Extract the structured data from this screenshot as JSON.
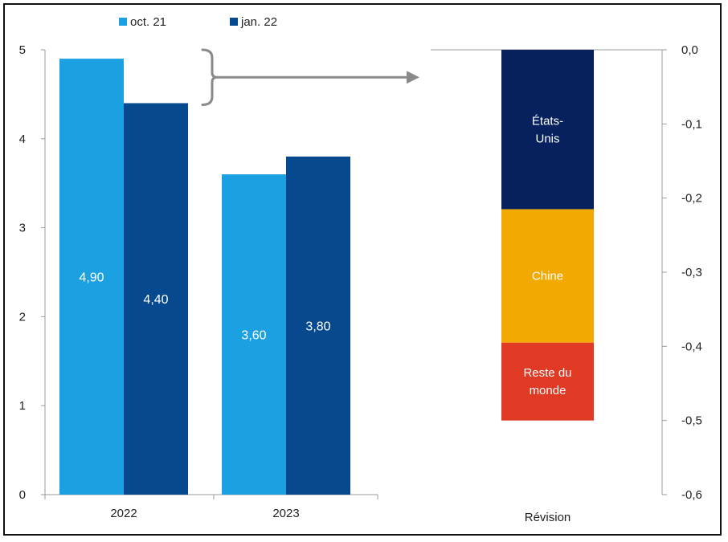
{
  "chart_data": [
    {
      "type": "bar",
      "categories": [
        "2022",
        "2023"
      ],
      "series": [
        {
          "name": "oct. 21",
          "values": [
            4.9,
            3.6
          ],
          "color": "#1ba0e2"
        },
        {
          "name": "jan. 22",
          "values": [
            4.4,
            3.8
          ],
          "color": "#06498f"
        }
      ],
      "data_labels": [
        [
          "4,90",
          "3,60"
        ],
        [
          "4,40",
          "3,80"
        ]
      ],
      "ylim": [
        0,
        5
      ],
      "yticks": [
        0,
        1,
        2,
        3,
        4,
        5
      ],
      "ytick_labels": [
        "0",
        "1",
        "2",
        "3",
        "4",
        "5"
      ],
      "legend_position": "top-left"
    },
    {
      "type": "bar",
      "stacked": true,
      "categories": [
        "Révision"
      ],
      "segments": [
        {
          "label_lines": [
            "États-",
            "Unis"
          ],
          "from": 0.0,
          "to": -0.215,
          "color": "#06215e",
          "text_color": "#ffffff"
        },
        {
          "label_lines": [
            "Chine"
          ],
          "from": -0.215,
          "to": -0.395,
          "color": "#f2a900",
          "text_color": "#ffffff"
        },
        {
          "label_lines": [
            "Reste du",
            "monde"
          ],
          "from": -0.395,
          "to": -0.5,
          "color": "#e03a24",
          "text_color": "#ffffff"
        }
      ],
      "ylim": [
        -0.6,
        0.0
      ],
      "yticks": [
        0.0,
        -0.1,
        -0.2,
        -0.3,
        -0.4,
        -0.5,
        -0.6
      ],
      "ytick_labels": [
        "0,0",
        "-0,1",
        "-0,2",
        "-0,3",
        "-0,4",
        "-0,5",
        "-0,6"
      ],
      "yaxis_side": "right"
    }
  ]
}
